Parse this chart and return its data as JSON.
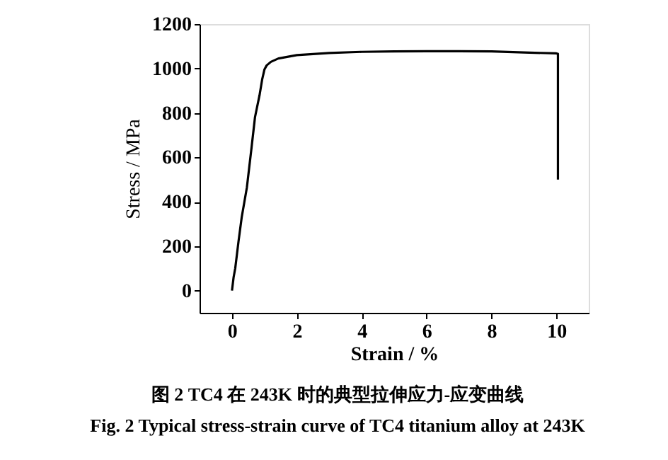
{
  "chart_data": {
    "type": "line",
    "title": [
      "图 2   TC4 在 243K 时的典型拉伸应力-应变曲线",
      "Fig. 2   Typical stress-strain curve of TC4 titanium alloy at 243K"
    ],
    "xlabel": "Strain / %",
    "ylabel": "Stress / MPa",
    "x": [
      0,
      0.05,
      0.1,
      0.2,
      0.3,
      0.46,
      0.6,
      0.71,
      0.85,
      0.93,
      1.0,
      1.07,
      1.2,
      1.43,
      2.0,
      3.0,
      4.0,
      5.0,
      6.0,
      7.0,
      8.0,
      9.0,
      10.0,
      10.05,
      10.05
    ],
    "series": [
      {
        "color": "#000000",
        "values": [
          0,
          60,
          100,
          220,
          330,
          465,
          640,
          781,
          880,
          950,
          995,
          1014,
          1030,
          1045,
          1060,
          1070,
          1075,
          1077,
          1078,
          1078,
          1077,
          1072,
          1068,
          1066,
          500
        ]
      }
    ],
    "xlim": [
      -1,
      11
    ],
    "ylim": [
      -100,
      1200
    ],
    "xticks": [
      0,
      2,
      4,
      6,
      8,
      10
    ],
    "yticks": [
      0,
      200,
      400,
      600,
      800,
      1000,
      1200
    ],
    "grid": false,
    "legend": false,
    "marker": "none",
    "line_style": "solid"
  }
}
